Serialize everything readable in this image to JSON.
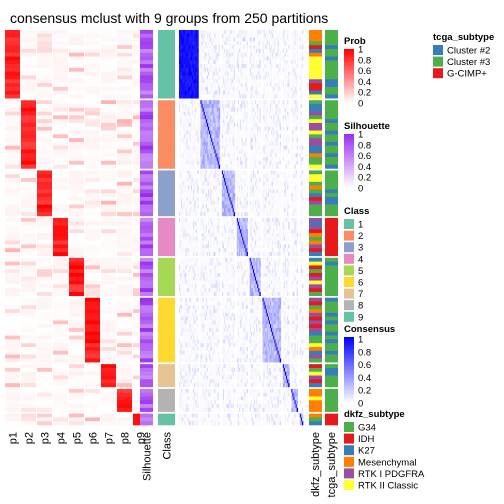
{
  "chart_data": {
    "type": "heatmap",
    "title": "consensus mclust with 9 groups from 250 partitions",
    "colors": {
      "prob_high": "#ff0000",
      "prob_low": "#ffffff",
      "silhouette_high": "#9a2cf0",
      "consensus_high": "#0000ff",
      "grid_line": "#ffffff"
    },
    "columns": {
      "prob": [
        "p1",
        "p2",
        "p3",
        "p4",
        "p5",
        "p6",
        "p7",
        "p8",
        "p9"
      ],
      "silhouette": "Silhouette",
      "class": "Class",
      "annotations": [
        "dkfz_subtype",
        "tcga_subtype"
      ]
    },
    "groups": [
      {
        "class": "1",
        "size": 18,
        "class_color": "#66c2a5"
      },
      {
        "class": "2",
        "size": 18,
        "class_color": "#fc8d62"
      },
      {
        "class": "3",
        "size": 12,
        "class_color": "#8da0cb"
      },
      {
        "class": "4",
        "size": 10,
        "class_color": "#e78ac3"
      },
      {
        "class": "5",
        "size": 10,
        "class_color": "#a6d854"
      },
      {
        "class": "6",
        "size": 17,
        "class_color": "#ffd92f"
      },
      {
        "class": "7",
        "size": 6,
        "class_color": "#e5c494"
      },
      {
        "class": "8",
        "size": 6,
        "class_color": "#b3b3b3"
      },
      {
        "class": "9",
        "size": 3,
        "class_color": "#66c2a5"
      }
    ],
    "legends": {
      "prob": {
        "title": "Prob",
        "ticks": [
          "1",
          "0.8",
          "0.6",
          "0.4",
          "0.2",
          "0"
        ]
      },
      "silhouette": {
        "title": "Silhouette",
        "ticks": [
          "1",
          "0.8",
          "0.6",
          "0.4",
          "0.2",
          "0"
        ]
      },
      "class": {
        "title": "Class",
        "entries": [
          {
            "label": "1",
            "color": "#66c2a5"
          },
          {
            "label": "2",
            "color": "#fc8d62"
          },
          {
            "label": "3",
            "color": "#8da0cb"
          },
          {
            "label": "4",
            "color": "#e78ac3"
          },
          {
            "label": "5",
            "color": "#a6d854"
          },
          {
            "label": "6",
            "color": "#ffd92f"
          },
          {
            "label": "7",
            "color": "#e5c494"
          },
          {
            "label": "8",
            "color": "#b3b3b3"
          },
          {
            "label": "9",
            "color": "#66c2a5"
          }
        ]
      },
      "consensus": {
        "title": "Consensus",
        "ticks": [
          "1",
          "0.8",
          "0.6",
          "0.4",
          "0.2",
          "0"
        ]
      },
      "dkfz_subtype": {
        "title": "dkfz_subtype",
        "entries": [
          {
            "label": "G34",
            "color": "#4daf4a"
          },
          {
            "label": "IDH",
            "color": "#e41a1c"
          },
          {
            "label": "K27",
            "color": "#377eb8"
          },
          {
            "label": "Mesenchymal",
            "color": "#ff7f00"
          },
          {
            "label": "RTK I PDGFRA",
            "color": "#984ea3"
          },
          {
            "label": "RTK II Classic",
            "color": "#ffff33"
          }
        ]
      },
      "tcga_subtype": {
        "title": "tcga_subtype",
        "entries": [
          {
            "label": "Cluster #2",
            "color": "#377eb8"
          },
          {
            "label": "Cluster #3",
            "color": "#4daf4a"
          },
          {
            "label": "G-CIMP+",
            "color": "#e41a1c"
          }
        ]
      }
    }
  }
}
